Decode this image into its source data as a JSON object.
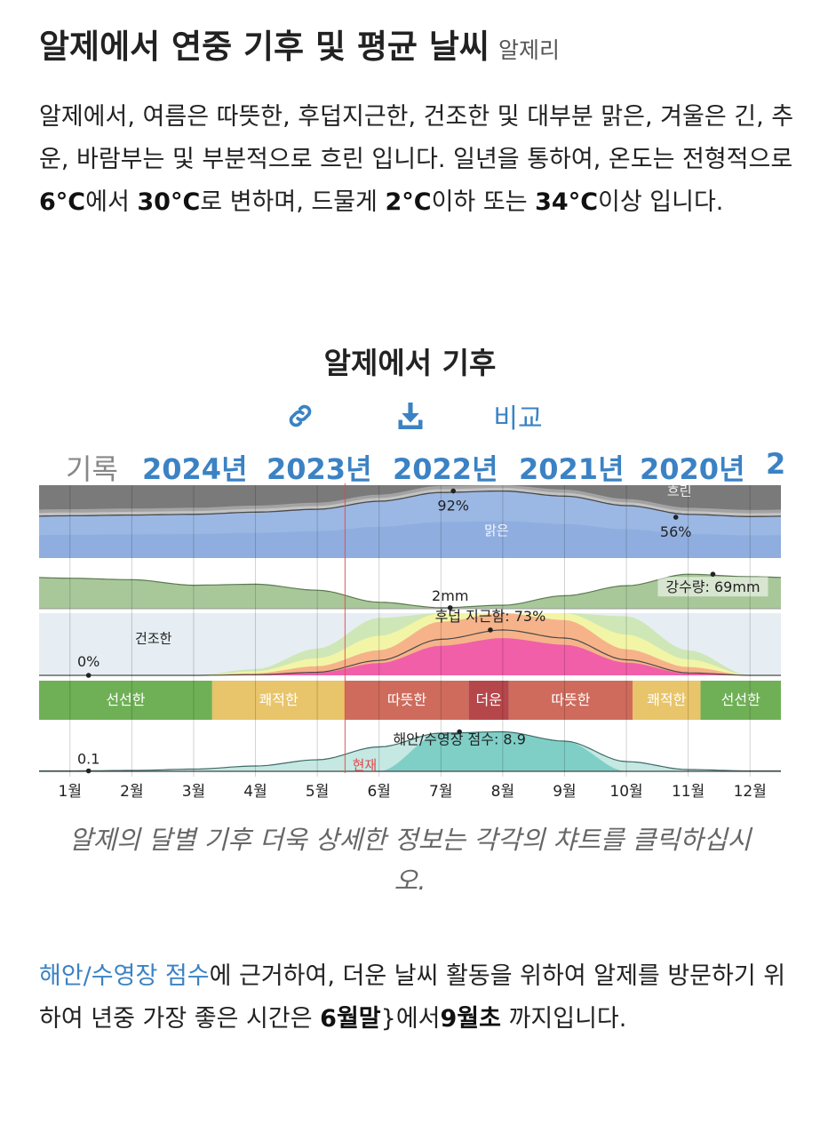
{
  "header": {
    "title": "알제에서 연중 기후 및 평균 날씨",
    "subtitle": "알제리"
  },
  "intro": {
    "p1": "알제에서, 여름은 따뜻한, 후덥지근한, 건조한 및 대부분 맑은, 겨울은 긴, 추운, 바람부는 및 부분적으로 흐린 입니다. 일년을 통하여, 온도는 전형적으로 ",
    "t1": "6°C",
    "p2": "에서 ",
    "t2": "30°C",
    "p3": "로 변하며, 드물게 ",
    "t3": "2°C",
    "p4": "이하 또는 ",
    "t4": "34°C",
    "p5": "이상 입니다."
  },
  "chart_header": {
    "title": "알제에서 기후",
    "link_icon": "link-icon",
    "download_icon": "download-icon",
    "compare_label": "비교"
  },
  "year_tabs": [
    "기록",
    "2024년",
    "2023년",
    "2022년",
    "2021년",
    "2020년",
    "2"
  ],
  "chart_data": {
    "type": "area",
    "months": [
      "1월",
      "2월",
      "3월",
      "4월",
      "5월",
      "6월",
      "7월",
      "8월",
      "9월",
      "10월",
      "11월",
      "12월"
    ],
    "current_marker_label": "현재",
    "current_marker_month": 5.45,
    "panels": [
      {
        "name": "cloud",
        "clear_percent": [
          58,
          59,
          60,
          63,
          67,
          78,
          90,
          92,
          85,
          72,
          60,
          57
        ],
        "annotations": [
          {
            "text": "92%",
            "month": 7.2,
            "value": 92
          },
          {
            "text": "56%",
            "month": 10.8,
            "value": 56
          }
        ],
        "labels": [
          "흐린",
          "맑은"
        ],
        "colors": {
          "overcast": "#7a7a7a",
          "mostly_cloudy": "#a3a3a3",
          "partly": "#c3c3c3",
          "clear": "#9bb8e4"
        }
      },
      {
        "name": "precipitation",
        "unit": "mm",
        "values": [
          61,
          58,
          47,
          49,
          37,
          13,
          2,
          7,
          26,
          46,
          69,
          64
        ],
        "annotations": [
          {
            "text": "2mm",
            "month": 7.15,
            "value": 2
          },
          {
            "text": "강수량: 69mm",
            "month": 11.4,
            "value": 69
          }
        ],
        "color": "#a8c89a"
      },
      {
        "name": "humidity",
        "muggy_percent": [
          0,
          0,
          0,
          1,
          5,
          24,
          58,
          73,
          60,
          25,
          4,
          0
        ],
        "annotations": [
          {
            "text": "0%",
            "month": 1.3,
            "value": 0
          },
          {
            "text": "후덥 지근함: 73%",
            "month": 7.8,
            "value": 73
          }
        ],
        "labels": [
          "건조한"
        ]
      },
      {
        "name": "temperature_bands",
        "bands": [
          {
            "label": "선선한",
            "from": 0.5,
            "to": 3.3,
            "color": "#6fb056"
          },
          {
            "label": "쾌적한",
            "from": 3.3,
            "to": 5.45,
            "color": "#e8c46a"
          },
          {
            "label": "따뜻한",
            "from": 5.45,
            "to": 7.45,
            "color": "#cf6b5c"
          },
          {
            "label": "더운",
            "from": 7.45,
            "to": 8.1,
            "color": "#b5474b"
          },
          {
            "label": "따뜻한",
            "from": 8.1,
            "to": 10.1,
            "color": "#cf6b5c"
          },
          {
            "label": "쾌적한",
            "from": 10.1,
            "to": 11.2,
            "color": "#e8c46a"
          },
          {
            "label": "선선한",
            "from": 11.2,
            "to": 12.5,
            "color": "#6fb056"
          }
        ]
      },
      {
        "name": "beach_score",
        "values": [
          0.1,
          0.2,
          0.5,
          1.2,
          2.6,
          5.5,
          8.6,
          8.9,
          6.8,
          2.2,
          0.4,
          0.1
        ],
        "annotations": [
          {
            "text": "0.1",
            "month": 1.3,
            "value": 0.1
          },
          {
            "text": "해안/수영장 점수: 8.9",
            "month": 7.3,
            "value": 8.9
          }
        ],
        "color": "#7fcfc7"
      }
    ]
  },
  "caption": "알제의 달별 기후 더욱 상세한 정보는 각각의 챠트를 클릭하십시오.",
  "outro": {
    "link": "해안/수영장 점수",
    "p1": "에 근거하여, 더운 날씨 활동을 위하여 알제를 방문하기 위하여 년중 가장 좋은 시간은 ",
    "m1a": "6월",
    "m1b": "말",
    "p2": "}에서",
    "m2a": "9월",
    "m2b": "초",
    "p3": " 까지입니다."
  }
}
